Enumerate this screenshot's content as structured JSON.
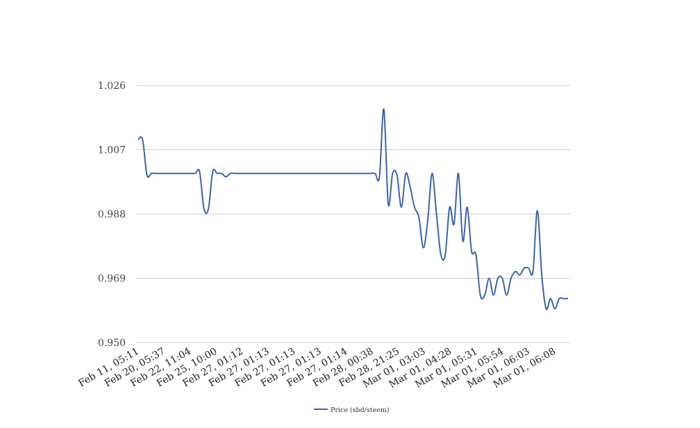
{
  "chart_data": {
    "type": "line",
    "title": "",
    "xlabel": "",
    "ylabel": "",
    "ylim": [
      0.95,
      1.026
    ],
    "y_ticks": [
      "1.026",
      "1.007",
      "0.988",
      "0.969",
      "0.950"
    ],
    "x_tick_labels": [
      "Feb 11, 05:11",
      "Feb 20, 05:37",
      "Feb 22, 11:04",
      "Feb 25, 10:00",
      "Feb 27, 01:12",
      "Feb 27, 01:13",
      "Feb 27, 01:13",
      "Feb 27, 01:13",
      "Feb 27, 01:14",
      "Feb 28, 00:38",
      "Feb 28, 21:25",
      "Mar 01, 03:03",
      "Mar 01, 04:28",
      "Mar 01, 05:31",
      "Mar 01, 05:54",
      "Mar 01, 06:03",
      "Mar 01, 06:08"
    ],
    "grid": true,
    "legend_position": "bottom",
    "series": [
      {
        "name": "Price (sbd/steem)",
        "color": "#3b63b0",
        "values": [
          1.01,
          1.01,
          0.9995,
          1.0,
          1.0,
          1.0,
          1.0,
          1.0,
          1.0,
          1.0,
          1.0,
          1.0,
          1.0,
          1.0,
          1.0005,
          0.9895,
          0.9895,
          1.0005,
          1.0,
          1.0,
          0.999,
          1.0,
          1.0,
          1.0,
          1.0,
          1.0,
          1.0,
          1.0,
          1.0,
          1.0,
          1.0,
          1.0,
          1.0,
          1.0,
          1.0,
          1.0,
          1.0,
          1.0,
          1.0,
          1.0,
          1.0,
          1.0,
          1.0,
          1.0,
          1.0,
          1.0,
          1.0,
          1.0,
          1.0,
          1.0,
          1.0,
          1.0,
          1.0,
          1.0,
          1.0,
          0.999,
          1.019,
          0.991,
          1.0,
          0.9995,
          0.99,
          1.0,
          0.996,
          0.99,
          0.987,
          0.978,
          0.986,
          1.0,
          0.988,
          0.976,
          0.976,
          0.99,
          0.985,
          1.0,
          0.98,
          0.99,
          0.977,
          0.976,
          0.964,
          0.964,
          0.969,
          0.964,
          0.969,
          0.969,
          0.964,
          0.969,
          0.971,
          0.97,
          0.972,
          0.972,
          0.971,
          0.989,
          0.97,
          0.96,
          0.963,
          0.96,
          0.963,
          0.963,
          0.963
        ]
      }
    ]
  }
}
